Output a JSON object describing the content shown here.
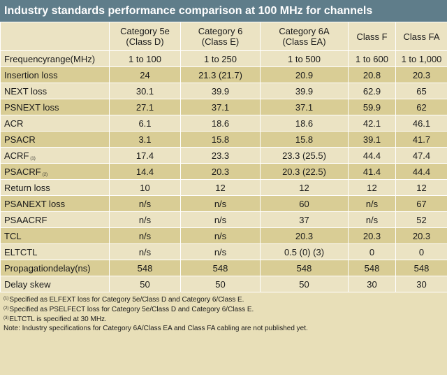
{
  "title": "Industry standards performance comparison at 100 MHz for channels",
  "columns": [
    {
      "name": "Category 5e",
      "sub": "(Class D)"
    },
    {
      "name": "Category 6",
      "sub": "(Class E)"
    },
    {
      "name": "Category 6A",
      "sub": "(Class EA)"
    },
    {
      "name": "Class F",
      "sub": ""
    },
    {
      "name": "Class FA",
      "sub": ""
    }
  ],
  "rows": [
    {
      "label": "Frequencyrange(MHz)",
      "mark": "",
      "values": [
        "1 to 100",
        "1 to 250",
        "1 to 500",
        "1 to 600",
        "1 to 1,000"
      ]
    },
    {
      "label": "Insertion loss",
      "mark": "",
      "values": [
        "24",
        "21.3 (21.7)",
        "20.9",
        "20.8",
        "20.3"
      ]
    },
    {
      "label": "NEXT loss",
      "mark": "",
      "values": [
        "30.1",
        "39.9",
        "39.9",
        "62.9",
        "65"
      ]
    },
    {
      "label": "PSNEXT loss",
      "mark": "",
      "values": [
        "27.1",
        "37.1",
        "37.1",
        "59.9",
        "62"
      ]
    },
    {
      "label": "ACR",
      "mark": "",
      "values": [
        "6.1",
        "18.6",
        "18.6",
        "42.1",
        "46.1"
      ]
    },
    {
      "label": "PSACR",
      "mark": "",
      "values": [
        "3.1",
        "15.8",
        "15.8",
        "39.1",
        "41.7"
      ]
    },
    {
      "label": "ACRF",
      "mark": "(1)",
      "values": [
        "17.4",
        "23.3",
        "23.3 (25.5)",
        "44.4",
        "47.4"
      ]
    },
    {
      "label": "PSACRF",
      "mark": "(2)",
      "values": [
        "14.4",
        "20.3",
        "20.3 (22.5)",
        "41.4",
        "44.4"
      ]
    },
    {
      "label": "Return loss",
      "mark": "",
      "values": [
        "10",
        "12",
        "12",
        "12",
        "12"
      ]
    },
    {
      "label": "PSANEXT loss",
      "mark": "",
      "values": [
        "n/s",
        "n/s",
        "60",
        "n/s",
        "67"
      ]
    },
    {
      "label": "PSAACRF",
      "mark": "",
      "values": [
        "n/s",
        "n/s",
        "37",
        "n/s",
        "52"
      ]
    },
    {
      "label": "TCL",
      "mark": "",
      "values": [
        "n/s",
        "n/s",
        "20.3",
        "20.3",
        "20.3"
      ]
    },
    {
      "label": "ELTCTL",
      "mark": "",
      "values": [
        "n/s",
        "n/s",
        "0.5 (0) (3)",
        "0",
        "0"
      ]
    },
    {
      "label": "Propagationdelay(ns)",
      "mark": "",
      "values": [
        "548",
        "548",
        "548",
        "548",
        "548"
      ]
    },
    {
      "label": "Delay skew",
      "mark": "",
      "values": [
        "50",
        "50",
        "50",
        "30",
        "30"
      ]
    }
  ],
  "notes": [
    {
      "mark": "(1)",
      "text": "Specified as ELFEXT loss for Category 5e/Class D and Category 6/Class E."
    },
    {
      "mark": "(2)",
      "text": "Specified as PSELFECT loss for Category 5e/Class D and Category 6/Class E."
    },
    {
      "mark": "(3)",
      "text": "ELTCTL is specified at 30 MHz."
    },
    {
      "mark": "",
      "text": "Note: Industry specifications for Category 6A/Class EA and Class FA cabling are not published yet."
    }
  ],
  "colors": {
    "title_bar": "#5f7d8a",
    "row_shaded": "#d9cd95",
    "row_plain": "#ebe3c3",
    "background": "#e8dfb8"
  }
}
